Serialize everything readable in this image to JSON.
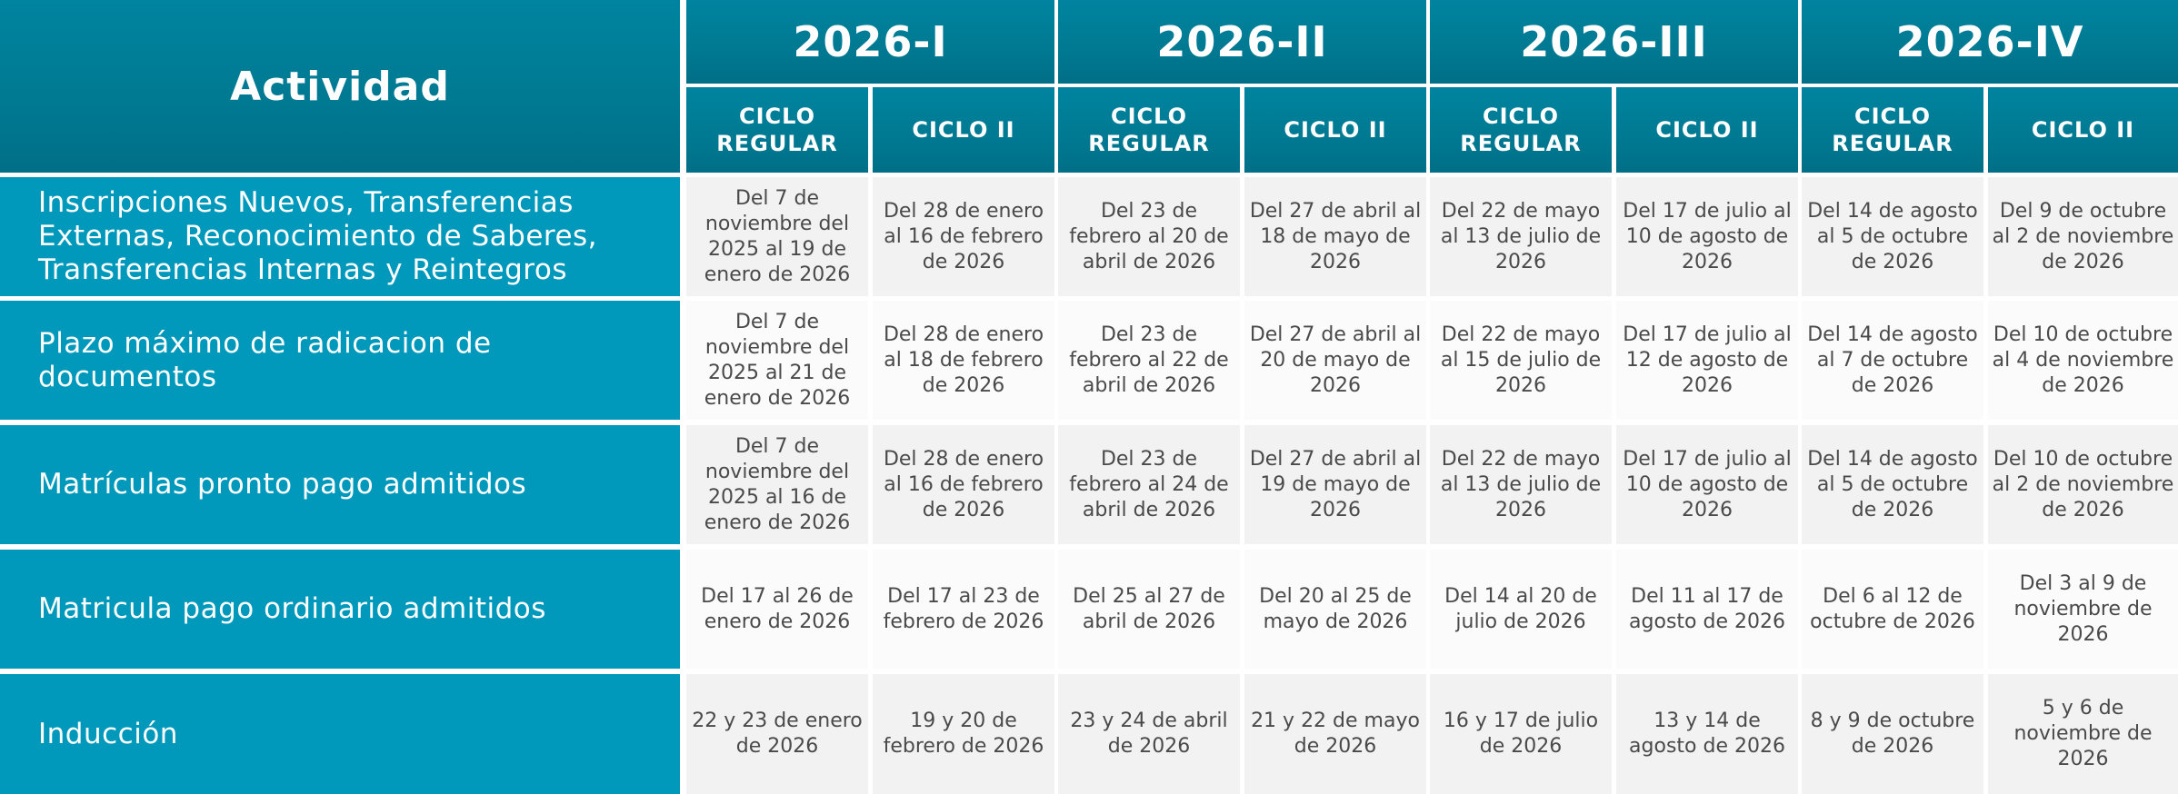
{
  "header": {
    "activity_label": "Actividad",
    "periods": [
      "2026-I",
      "2026-II",
      "2026-III",
      "2026-IV"
    ],
    "cycles": [
      "CICLO REGULAR",
      "CICLO II",
      "CICLO REGULAR",
      "CICLO II",
      "CICLO REGULAR",
      "CICLO II",
      "CICLO REGULAR",
      "CICLO II"
    ]
  },
  "rows": [
    {
      "activity": "Inscripciones Nuevos, Transferencias Externas, Reconocimiento de Saberes, Transferencias Internas y Reintegros",
      "cells": [
        "Del 7 de noviembre del 2025 al 19 de enero de 2026",
        "Del 28 de enero al 16 de febrero de 2026",
        "Del 23 de febrero al 20 de abril de 2026",
        "Del 27 de abril al 18 de mayo de 2026",
        "Del 22 de mayo al 13 de julio de 2026",
        "Del 17 de julio al 10 de agosto de 2026",
        "Del 14 de agosto al 5 de octubre de 2026",
        "Del 9 de octubre al 2 de noviembre de 2026"
      ]
    },
    {
      "activity": "Plazo máximo de radicacion de documentos",
      "cells": [
        "Del 7 de noviembre del 2025 al 21 de enero de 2026",
        "Del 28 de enero al 18 de febrero de 2026",
        "Del 23 de febrero al 22 de abril de 2026",
        "Del 27 de abril al 20 de mayo de 2026",
        "Del 22 de mayo al 15 de julio de 2026",
        "Del 17 de julio al 12 de agosto de 2026",
        "Del 14 de agosto al 7 de octubre de 2026",
        "Del 10 de octubre al 4 de noviembre de 2026"
      ]
    },
    {
      "activity": "Matrículas pronto pago admitidos",
      "cells": [
        "Del 7 de noviembre del 2025 al 16 de enero de 2026",
        "Del 28 de enero al 16 de febrero de 2026",
        "Del 23 de febrero al 24 de abril de 2026",
        "Del 27 de abril al 19 de mayo de 2026",
        "Del 22 de mayo al 13 de julio de 2026",
        "Del 17 de julio al 10 de agosto de 2026",
        "Del 14 de agosto al 5 de octubre de 2026",
        "Del  10 de octubre al 2 de noviembre de 2026"
      ]
    },
    {
      "activity": "Matricula pago ordinario admitidos",
      "cells": [
        "Del 17 al 26 de enero de 2026",
        "Del 17 al 23 de febrero de 2026",
        "Del 25 al 27 de abril de 2026",
        "Del 20 al 25 de mayo de 2026",
        "Del 14 al 20 de julio  de 2026",
        "Del 11 al 17 de agosto de 2026",
        "Del 6 al 12 de octubre de 2026",
        "Del 3 al 9 de noviembre de 2026"
      ]
    },
    {
      "activity": "Inducción",
      "cells": [
        "22 y 23 de enero de 2026",
        "19 y 20 de febrero de 2026",
        "23 y 24 de abril de 2026",
        "21 y 22 de mayo de 2026",
        "16 y 17 de julio de 2026",
        "13 y 14 de agosto de 2026",
        "8 y 9 de octubre de 2026",
        "5 y 6 de noviembre de 2026"
      ]
    }
  ]
}
